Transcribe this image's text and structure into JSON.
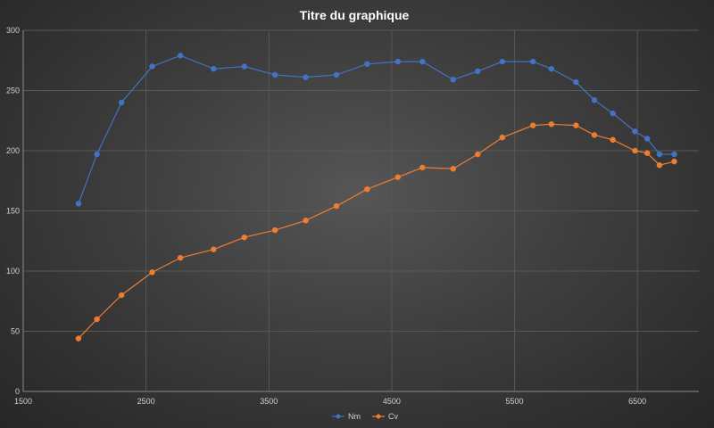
{
  "chart_data": {
    "type": "line",
    "title": "Titre du graphique",
    "xlabel": "",
    "ylabel": "",
    "xlim": [
      1500,
      7000
    ],
    "ylim": [
      0,
      300
    ],
    "xticks": [
      1500,
      2500,
      3500,
      4500,
      5500,
      6500
    ],
    "yticks": [
      0,
      50,
      100,
      150,
      200,
      250,
      300
    ],
    "grid": true,
    "legend": "bottom",
    "x": [
      1950,
      2100,
      2300,
      2550,
      2780,
      3050,
      3300,
      3550,
      3800,
      4050,
      4300,
      4550,
      4750,
      5000,
      5200,
      5400,
      5650,
      5800,
      6000,
      6150,
      6300,
      6480,
      6580,
      6680,
      6800
    ],
    "series": [
      {
        "name": "Nm",
        "color": "#4472c4",
        "values": [
          156,
          197,
          240,
          270,
          279,
          268,
          270,
          263,
          261,
          263,
          272,
          274,
          274,
          259,
          266,
          274,
          274,
          268,
          257,
          242,
          231,
          216,
          210,
          197,
          197
        ]
      },
      {
        "name": "Cv",
        "color": "#ed7d31",
        "values": [
          44,
          60,
          80,
          99,
          111,
          118,
          128,
          134,
          142,
          154,
          168,
          178,
          186,
          185,
          197,
          211,
          221,
          222,
          221,
          213,
          209,
          200,
          198,
          188,
          191
        ]
      }
    ]
  },
  "colors": {
    "grid": "#575757",
    "axis": "#8a8a8a"
  }
}
